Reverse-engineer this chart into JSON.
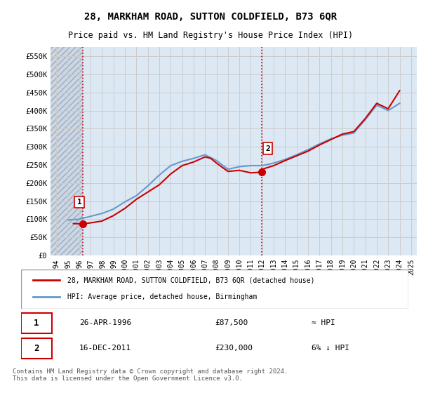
{
  "title": "28, MARKHAM ROAD, SUTTON COLDFIELD, B73 6QR",
  "subtitle": "Price paid vs. HM Land Registry's House Price Index (HPI)",
  "ylabel_ticks": [
    "£0",
    "£50K",
    "£100K",
    "£150K",
    "£200K",
    "£250K",
    "£300K",
    "£350K",
    "£400K",
    "£450K",
    "£500K",
    "£550K"
  ],
  "ytick_values": [
    0,
    50000,
    100000,
    150000,
    200000,
    250000,
    300000,
    350000,
    400000,
    450000,
    500000,
    550000
  ],
  "ylim": [
    0,
    575000
  ],
  "xlim_min": 1993.5,
  "xlim_max": 2025.5,
  "sale1_year": 1996.32,
  "sale1_price": 87500,
  "sale1_label": "1",
  "sale1_date": "26-APR-1996",
  "sale1_hpi_rel": "≈ HPI",
  "sale2_year": 2011.96,
  "sale2_price": 230000,
  "sale2_label": "2",
  "sale2_date": "16-DEC-2011",
  "sale2_hpi_rel": "6% ↓ HPI",
  "line1_color": "#cc0000",
  "line2_color": "#6699cc",
  "dot_color": "#cc0000",
  "vline_color": "#cc0000",
  "grid_color": "#cccccc",
  "bg_plot": "#dce9f5",
  "bg_hatch": "#c8d8ea",
  "legend_label1": "28, MARKHAM ROAD, SUTTON COLDFIELD, B73 6QR (detached house)",
  "legend_label2": "HPI: Average price, detached house, Birmingham",
  "footer": "Contains HM Land Registry data © Crown copyright and database right 2024.\nThis data is licensed under the Open Government Licence v3.0.",
  "xtick_years": [
    1994,
    1995,
    1996,
    1997,
    1998,
    1999,
    2000,
    2001,
    2002,
    2003,
    2004,
    2005,
    2006,
    2007,
    2008,
    2009,
    2010,
    2011,
    2012,
    2013,
    2014,
    2015,
    2016,
    2017,
    2018,
    2019,
    2020,
    2021,
    2022,
    2023,
    2024,
    2025
  ],
  "hpi_years": [
    1995,
    1996,
    1997,
    1998,
    1999,
    2000,
    2001,
    2002,
    2003,
    2004,
    2005,
    2006,
    2007,
    2008,
    2009,
    2010,
    2011,
    2012,
    2013,
    2014,
    2015,
    2016,
    2017,
    2018,
    2019,
    2020,
    2021,
    2022,
    2023,
    2024
  ],
  "hpi_values": [
    98000,
    100000,
    108000,
    116000,
    128000,
    148000,
    165000,
    192000,
    222000,
    248000,
    260000,
    268000,
    278000,
    262000,
    238000,
    245000,
    248000,
    248000,
    255000,
    265000,
    278000,
    292000,
    308000,
    322000,
    332000,
    338000,
    375000,
    415000,
    400000,
    420000
  ],
  "price_years": [
    1995.5,
    1996.0,
    1996.32,
    1997,
    1998,
    1999,
    2000,
    2001,
    2002,
    2003,
    2004,
    2005,
    2006,
    2006.5,
    2007,
    2007.5,
    2008,
    2009,
    2010,
    2011,
    2011.96,
    2012,
    2013,
    2014,
    2015,
    2016,
    2017,
    2018,
    2019,
    2020,
    2021,
    2022,
    2023,
    2023.5,
    2024
  ],
  "price_values": [
    88000,
    87500,
    87500,
    90000,
    95000,
    110000,
    130000,
    155000,
    175000,
    195000,
    225000,
    248000,
    258000,
    265000,
    272000,
    268000,
    255000,
    232000,
    235000,
    228000,
    230000,
    238000,
    248000,
    262000,
    275000,
    288000,
    305000,
    320000,
    335000,
    342000,
    378000,
    420000,
    405000,
    430000,
    455000
  ]
}
